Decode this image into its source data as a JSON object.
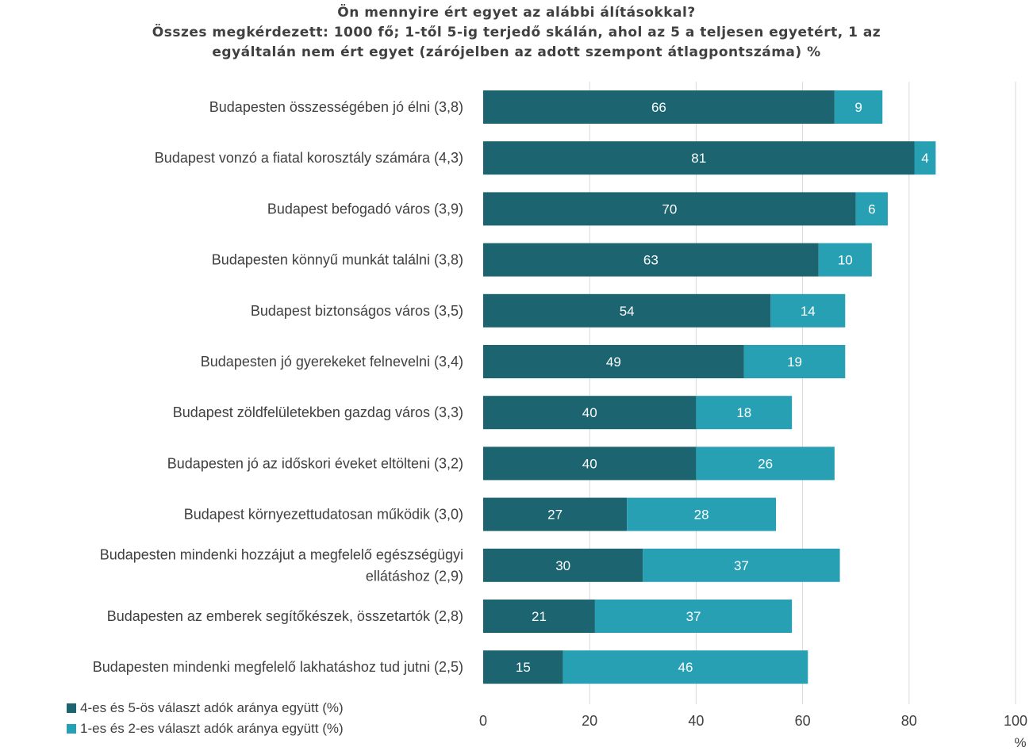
{
  "chart_data": {
    "type": "bar",
    "orientation": "horizontal",
    "stacked": true,
    "title": [
      "Ön mennyire ért egyet az alábbi álításokkal?",
      "Összes megkérdezett: 1000 fő; 1-től 5-ig terjedő skálán, ahol az 5 a teljesen egyetért, 1  az",
      "egyáltalán nem ért egyet (zárójelben az adott szempont átlagpontszáma) %"
    ],
    "categories": [
      "Budapesten összességében jó élni (3,8)",
      "Budapest vonzó a fiatal korosztály számára (4,3)",
      "Budapest befogadó város (3,9)",
      "Budapesten könnyű munkát találni (3,8)",
      "Budapest biztonságos város (3,5)",
      "Budapesten jó gyerekeket felnevelni (3,4)",
      "Budapest zöldfelületekben gazdag város (3,3)",
      "Budapesten jó az időskori éveket eltölteni (3,2)",
      "Budapest környezettudatosan működik (3,0)",
      "Budapesten mindenki hozzájut a megfelelő egészségügyi ellátáshoz (2,9)",
      "Budapesten az emberek segítőkészek, összetartók (2,8)",
      "Budapesten mindenki megfelelő lakhatáshoz tud jutni (2,5)"
    ],
    "series": [
      {
        "name": "4-es és 5-ös választ adók aránya együtt (%)",
        "color": "#1b6470",
        "values": [
          66,
          81,
          70,
          63,
          54,
          49,
          40,
          40,
          27,
          30,
          21,
          15
        ]
      },
      {
        "name": "1-es és 2-es választ adók aránya együtt (%)",
        "color": "#28a0b4",
        "values": [
          9,
          4,
          6,
          10,
          14,
          19,
          18,
          26,
          28,
          37,
          37,
          46
        ]
      }
    ],
    "xlim": [
      0,
      100
    ],
    "x_ticks": [
      0,
      20,
      40,
      60,
      80,
      100
    ],
    "x_unit_label": "%",
    "grid": true,
    "data_label_color": "#ffffff",
    "grid_color": "#d9d9d9",
    "legend_position": "bottom-left"
  }
}
